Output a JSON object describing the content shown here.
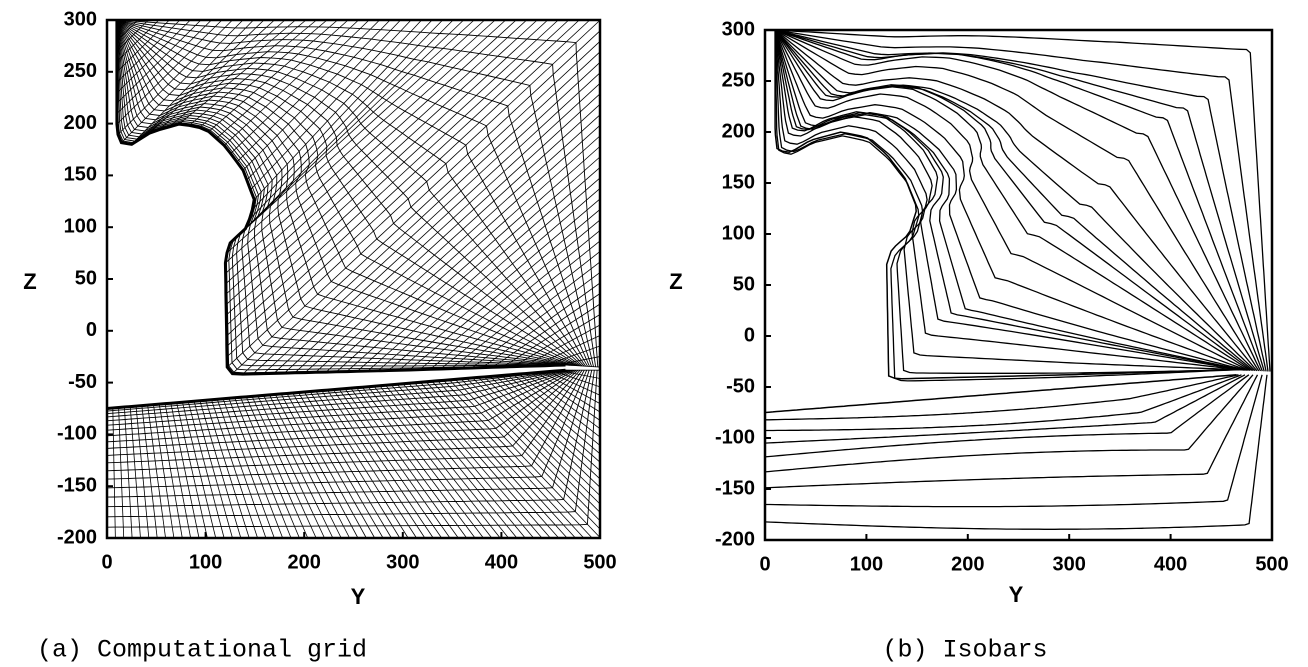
{
  "chart_data": [
    {
      "type": "mesh",
      "xlabel": "Y",
      "ylabel": "Z",
      "caption": "(a) Computational grid",
      "xlim": [
        0,
        500
      ],
      "ylim": [
        -200,
        300
      ],
      "xticks": [
        0,
        100,
        200,
        300,
        400,
        500
      ],
      "yticks": [
        -200,
        -150,
        -100,
        -50,
        0,
        50,
        100,
        150,
        200,
        250,
        300
      ]
    },
    {
      "type": "contour",
      "xlabel": "Y",
      "ylabel": "Z",
      "caption": "(b) Isobars",
      "xlim": [
        0,
        500
      ],
      "ylim": [
        -200,
        300
      ],
      "xticks": [
        0,
        100,
        200,
        300,
        400,
        500
      ],
      "yticks": [
        -200,
        -150,
        -100,
        -50,
        0,
        50,
        100,
        150,
        200,
        250,
        300
      ]
    }
  ]
}
